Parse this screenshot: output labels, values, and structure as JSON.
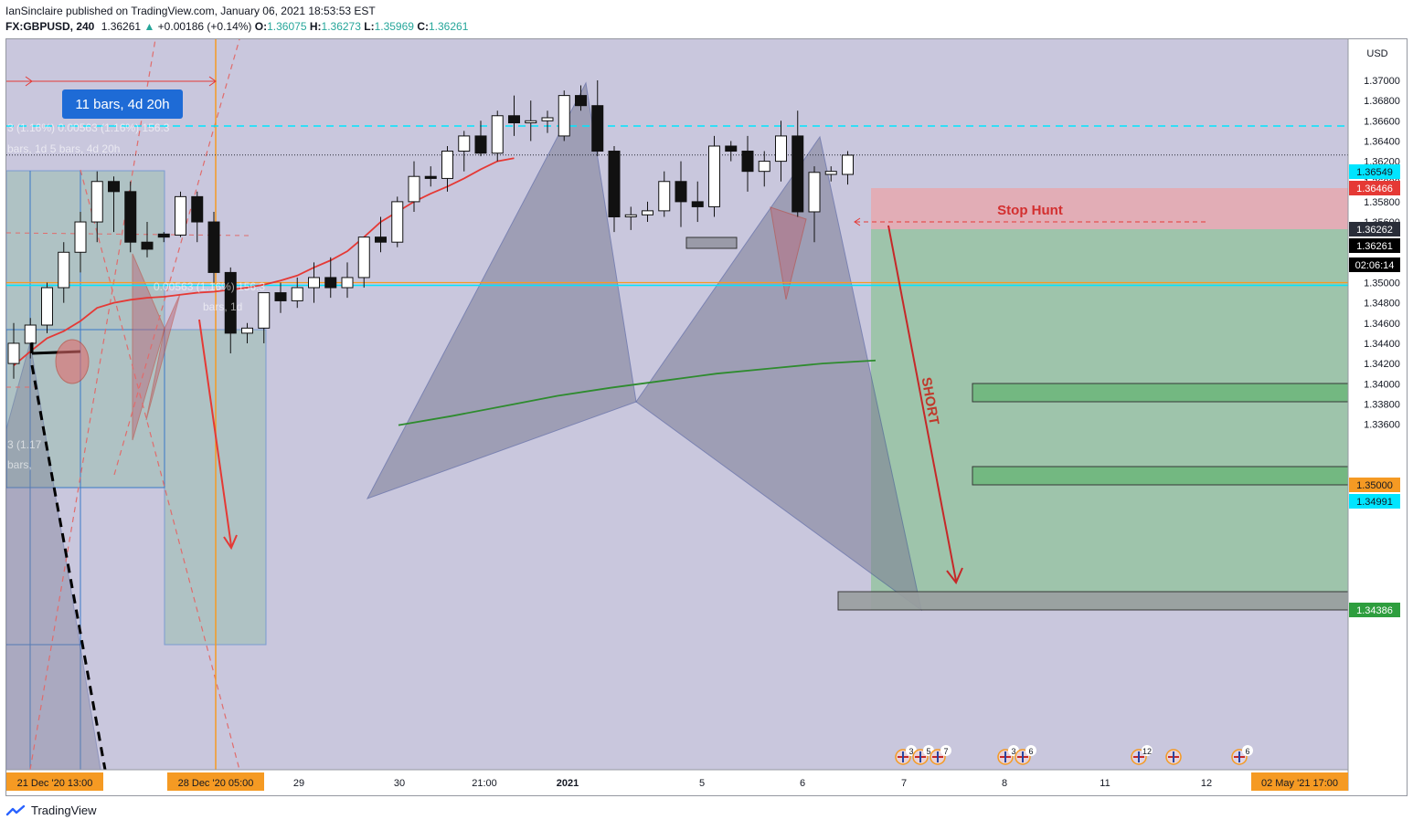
{
  "header": {
    "publisher_line": "IanSinclaire published on TradingView.com, January 06, 2021 18:53:53 EST",
    "symbol": "FX:GBPUSD, 240",
    "last": "1.36261",
    "change_arrow": "▲",
    "change": "+0.00186 (+0.14%)",
    "o_label": "O:",
    "o_value": "1.36075",
    "h_label": "H:",
    "h_value": "1.36273",
    "l_label": "L:",
    "l_value": "1.35969",
    "c_label": "C:",
    "c_value": "1.36261"
  },
  "footer": {
    "brand": "TradingView"
  },
  "chart_data": {
    "type": "candlestick",
    "symbol": "FX:GBPUSD",
    "interval": "240",
    "currency_label": "USD",
    "ylim": [
      1.3359,
      1.3719
    ],
    "y_ticks": [
      "1.37000",
      "1.36800",
      "1.36600",
      "1.36400",
      "1.36200",
      "1.36000",
      "1.35800",
      "1.35600",
      "1.35400",
      "1.35200",
      "1.35000",
      "1.34800",
      "1.34600",
      "1.34400",
      "1.34200",
      "1.34000",
      "1.33800",
      "1.33600"
    ],
    "x_ticks": [
      "29",
      "30",
      "21:00",
      "2021",
      "5",
      "6",
      "7",
      "8",
      "11",
      "12"
    ],
    "x_ticks_highlight": [
      "21 Dec '20   13:00",
      "28 Dec '20   05:00",
      "02 May '21   17:00"
    ],
    "price_labels": [
      {
        "text": "1.36549",
        "color": "#00e5ff",
        "text_color": "#131722"
      },
      {
        "text": "1.36466",
        "color": "#e53935",
        "text_color": "#ffffff"
      },
      {
        "text": "1.36262",
        "color": "#2a2e39",
        "text_color": "#ffffff"
      },
      {
        "text": "1.36261",
        "color": "#000000",
        "text_color": "#ffffff"
      },
      {
        "text": "02:06:14",
        "color": "#000000",
        "text_color": "#ffffff"
      },
      {
        "text": "1.35000",
        "color": "#f59a23",
        "text_color": "#131722"
      },
      {
        "text": "1.34991",
        "color": "#00e5ff",
        "text_color": "#131722"
      },
      {
        "text": "1.34386",
        "color": "#2e9e3e",
        "text_color": "#ffffff"
      }
    ],
    "annotations": {
      "bars_box": "11 bars, 4d 20h",
      "stop_hunt": "Stop Hunt",
      "short": "SHORT",
      "faded_1": "3 (1.16%) 0.00563 (1.16%) 156.3",
      "faded_2": "bars, 1d      5 bars, 4d 20h",
      "faded_3": "0.00563 (1.16%) 156.3",
      "faded_4": "bars, 1d",
      "faded_5": "3 (1.17",
      "faded_6": "bars,"
    },
    "levels": {
      "stop": 1.36466,
      "entry": 1.36262,
      "target": 1.34386,
      "resistance": 1.36549,
      "support_orange": 1.35,
      "support_cyan": 1.34991
    },
    "events": [
      {
        "flags": [
          "uk",
          "uk",
          "uk"
        ],
        "counts": [
          "3",
          "5",
          "7"
        ]
      },
      {
        "flags": [
          "uk",
          "uk"
        ],
        "counts": [
          "3",
          "6"
        ]
      },
      {
        "flags": [
          "us"
        ],
        "counts": [
          "12"
        ]
      },
      {
        "flags": [
          "uk"
        ],
        "counts": []
      },
      {
        "flags": [
          "us"
        ],
        "counts": [
          "6"
        ]
      }
    ],
    "candles_ohlc": [
      [
        1.342,
        1.346,
        1.3405,
        1.344
      ],
      [
        1.344,
        1.3465,
        1.3425,
        1.3458
      ],
      [
        1.3458,
        1.35,
        1.345,
        1.3495
      ],
      [
        1.3495,
        1.354,
        1.348,
        1.353
      ],
      [
        1.353,
        1.357,
        1.351,
        1.356
      ],
      [
        1.356,
        1.361,
        1.354,
        1.36
      ],
      [
        1.36,
        1.3605,
        1.355,
        1.359
      ],
      [
        1.359,
        1.36,
        1.353,
        1.354
      ],
      [
        1.354,
        1.356,
        1.3525,
        1.3533
      ],
      [
        1.3548,
        1.355,
        1.354,
        1.3545
      ],
      [
        1.3547,
        1.359,
        1.3545,
        1.3585
      ],
      [
        1.3585,
        1.359,
        1.354,
        1.356
      ],
      [
        1.356,
        1.357,
        1.35,
        1.351
      ],
      [
        1.351,
        1.3515,
        1.343,
        1.345
      ],
      [
        1.345,
        1.346,
        1.344,
        1.3455
      ],
      [
        1.3455,
        1.349,
        1.344,
        1.349
      ],
      [
        1.349,
        1.35,
        1.347,
        1.3482
      ],
      [
        1.3482,
        1.3505,
        1.3475,
        1.3495
      ],
      [
        1.3495,
        1.352,
        1.348,
        1.3505
      ],
      [
        1.3505,
        1.3525,
        1.3485,
        1.3495
      ],
      [
        1.3495,
        1.352,
        1.3485,
        1.3505
      ],
      [
        1.3505,
        1.3545,
        1.3495,
        1.3545
      ],
      [
        1.3545,
        1.3565,
        1.353,
        1.354
      ],
      [
        1.354,
        1.3585,
        1.3535,
        1.358
      ],
      [
        1.358,
        1.362,
        1.357,
        1.3605
      ],
      [
        1.3605,
        1.3615,
        1.3595,
        1.3603
      ],
      [
        1.3603,
        1.3635,
        1.359,
        1.363
      ],
      [
        1.363,
        1.365,
        1.361,
        1.3645
      ],
      [
        1.3645,
        1.366,
        1.3625,
        1.3628
      ],
      [
        1.3628,
        1.367,
        1.362,
        1.3665
      ],
      [
        1.3665,
        1.3685,
        1.3645,
        1.3658
      ],
      [
        1.3658,
        1.368,
        1.364,
        1.366
      ],
      [
        1.366,
        1.367,
        1.3648,
        1.3663
      ],
      [
        1.3645,
        1.369,
        1.364,
        1.3685
      ],
      [
        1.3685,
        1.3695,
        1.367,
        1.3675
      ],
      [
        1.3675,
        1.37,
        1.3625,
        1.363
      ],
      [
        1.363,
        1.3635,
        1.355,
        1.3565
      ],
      [
        1.3565,
        1.3575,
        1.3552,
        1.3567
      ],
      [
        1.3567,
        1.358,
        1.356,
        1.3571
      ],
      [
        1.3571,
        1.361,
        1.3565,
        1.36
      ],
      [
        1.36,
        1.362,
        1.3555,
        1.358
      ],
      [
        1.358,
        1.36,
        1.356,
        1.3575
      ],
      [
        1.3575,
        1.3645,
        1.3565,
        1.3635
      ],
      [
        1.3635,
        1.364,
        1.362,
        1.363
      ],
      [
        1.363,
        1.3645,
        1.359,
        1.361
      ],
      [
        1.361,
        1.363,
        1.3595,
        1.362
      ],
      [
        1.362,
        1.366,
        1.36,
        1.3645
      ],
      [
        1.3645,
        1.367,
        1.3565,
        1.357
      ],
      [
        1.357,
        1.3615,
        1.354,
        1.3609
      ],
      [
        1.3607,
        1.3615,
        1.36,
        1.361
      ],
      [
        1.3607,
        1.363,
        1.3597,
        1.3626
      ]
    ],
    "series": [
      {
        "name": "",
        "color": "#e53935",
        "values": [
          1.3418,
          1.3432,
          1.3445,
          1.3452,
          1.3462,
          1.3475,
          1.348,
          1.3483,
          1.3485,
          1.3486,
          1.3488,
          1.349,
          1.3491,
          1.3493,
          1.3495,
          1.3498,
          1.3502,
          1.3507,
          1.3515,
          1.3522,
          1.3531,
          1.3545,
          1.356,
          1.357,
          1.358,
          1.3588,
          1.3595,
          1.3603,
          1.3612,
          1.362,
          1.3623
        ]
      },
      {
        "name": "",
        "color": "#2e8b2e",
        "values": [
          1.3359,
          1.3368,
          1.3378,
          1.3388,
          1.3396,
          1.3403,
          1.341,
          1.3415,
          1.342,
          1.3423
        ]
      }
    ]
  }
}
